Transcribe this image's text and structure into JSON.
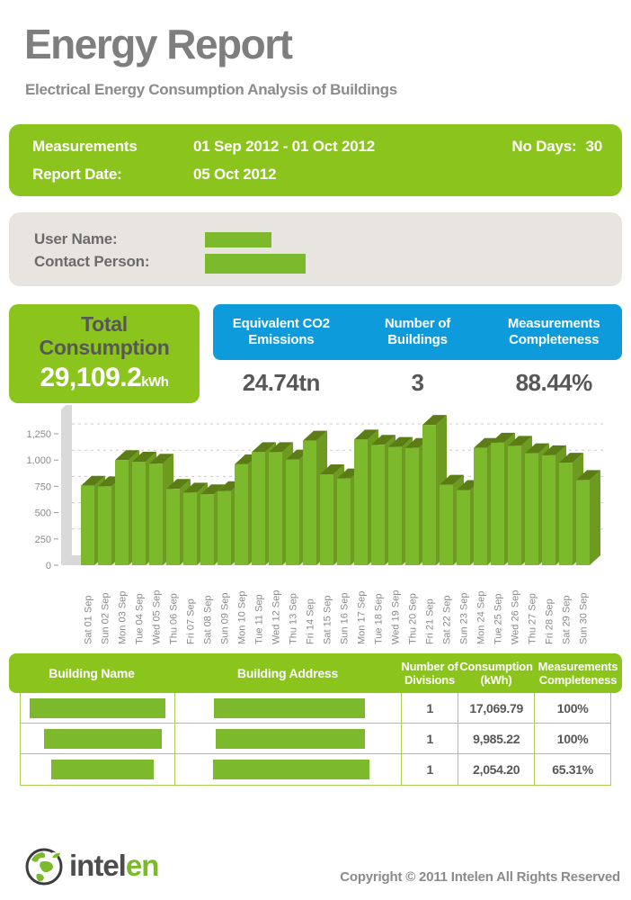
{
  "header": {
    "title": "Energy Report",
    "subtitle": "Electrical Energy Consumption Analysis of Buildings"
  },
  "info_bar": {
    "measurements_label": "Measurements",
    "period": "01 Sep 2012 - 01 Oct 2012",
    "no_days_label": "No Days:",
    "no_days_value": "30",
    "report_date_label": "Report Date:",
    "report_date": "05 Oct 2012"
  },
  "user_box": {
    "user_name_label": "User Name:",
    "contact_person_label": "Contact Person:"
  },
  "stats": {
    "total": {
      "title": "Total Consumption",
      "value": "29,109.2",
      "unit": "kWh"
    },
    "columns": [
      {
        "label": "Equivalent CO2 Emissions",
        "value": "24.74tn"
      },
      {
        "label": "Number of Buildings",
        "value": "3"
      },
      {
        "label": "Measurements Completeness",
        "value": "88.44%"
      }
    ]
  },
  "chart_data": {
    "type": "bar",
    "title": "",
    "xlabel": "",
    "ylabel": "",
    "unit": "kWh",
    "ylim": [
      0,
      1400
    ],
    "yticks": [
      0,
      250,
      500,
      750,
      1000,
      1250
    ],
    "grid": "horizontal-dashed",
    "legend_position": "none",
    "style": "3d-green-bars",
    "categories": [
      "Sat 01 Sep",
      "Sun 02 Sep",
      "Mon 03 Sep",
      "Tue 04 Sep",
      "Wed 05 Sep",
      "Thu 06 Sep",
      "Fri 07 Sep",
      "Sat 08 Sep",
      "Sun 09 Sep",
      "Mon 10 Sep",
      "Tue 11 Sep",
      "Wed 12 Sep",
      "Thu 13 Sep",
      "Fri 14 Sep",
      "Sat 15 Sep",
      "Sun 16 Sep",
      "Mon 17 Sep",
      "Tue 18 Sep",
      "Wed 19 Sep",
      "Thu 20 Sep",
      "Fri 21 Sep",
      "Sat 22 Sep",
      "Sun 23 Sep",
      "Mon 24 Sep",
      "Tue 25 Sep",
      "Wed 26 Sep",
      "Thu 27 Sep",
      "Fri 28 Sep",
      "Sat 29 Sep",
      "Sun 30 Sep"
    ],
    "values": [
      755,
      750,
      1000,
      985,
      965,
      725,
      690,
      675,
      705,
      960,
      1075,
      1075,
      1005,
      1185,
      865,
      825,
      1195,
      1145,
      1125,
      1115,
      1335,
      765,
      715,
      1115,
      1165,
      1135,
      1065,
      1045,
      975,
      810
    ]
  },
  "table": {
    "headers": [
      "Building Name",
      "Building Address",
      "Number of Divisions",
      "Consumption (kWh)",
      "Measurements Completeness"
    ],
    "rows": [
      {
        "name_redacted": true,
        "address_redacted": true,
        "divisions": "1",
        "consumption": "17,069.79",
        "completeness": "100%"
      },
      {
        "name_redacted": true,
        "address_redacted": true,
        "divisions": "1",
        "consumption": "9,985.22",
        "completeness": "100%"
      },
      {
        "name_redacted": true,
        "address_redacted": true,
        "divisions": "1",
        "consumption": "2,054.20",
        "completeness": "65.31%"
      }
    ]
  },
  "footer": {
    "logo_part_dark": "intel",
    "logo_part_green": "en",
    "copyright": "Copyright © 2011 Intelen All Rights Reserved"
  },
  "colors": {
    "green_primary": "#8cc41e",
    "bar_face": "#7cb92d",
    "bar_top": "#5c7d15",
    "bar_side": "#6d9b20",
    "blue": "#0d9bdb",
    "wall_gray": "#d9d9d9",
    "grid_gray": "#cbcbcb",
    "text_gray": "#575757"
  }
}
